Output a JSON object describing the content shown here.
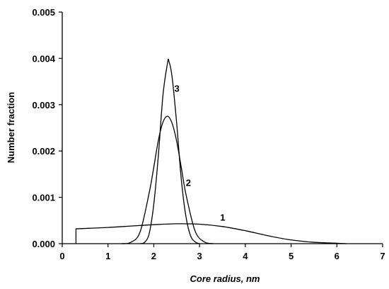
{
  "chart_data": {
    "type": "line",
    "xlabel": "Core radius, nm",
    "ylabel": "Number fraction",
    "xlim": [
      0,
      7
    ],
    "ylim": [
      0,
      0.005
    ],
    "x_ticks": [
      "0",
      "1",
      "2",
      "3",
      "4",
      "5",
      "6",
      "7"
    ],
    "y_ticks": [
      "0.000",
      "0.001",
      "0.002",
      "0.003",
      "0.004",
      "0.005"
    ],
    "grid": false,
    "series": [
      {
        "name": "1",
        "x": [
          0.3,
          0.3,
          1.0,
          1.5,
          2.0,
          2.5,
          3.0,
          3.5,
          4.0,
          4.5,
          5.0,
          5.5,
          6.0,
          6.2
        ],
        "y": [
          0.0,
          0.00032,
          0.00035,
          0.00038,
          0.00041,
          0.00043,
          0.00042,
          0.00037,
          0.00028,
          0.00017,
          8e-05,
          3e-05,
          1e-05,
          0.0
        ]
      },
      {
        "name": "2",
        "x": [
          1.3,
          1.5,
          1.7,
          1.9,
          2.0,
          2.1,
          2.2,
          2.3,
          2.4,
          2.5,
          2.6,
          2.7,
          2.9,
          3.1,
          3.3
        ],
        "y": [
          0.0,
          3e-05,
          0.00025,
          0.0011,
          0.00165,
          0.00223,
          0.00262,
          0.00275,
          0.0026,
          0.00221,
          0.00165,
          0.00108,
          0.00028,
          4e-05,
          0.0
        ]
      },
      {
        "name": "3",
        "x": [
          1.7,
          1.8,
          1.9,
          2.0,
          2.1,
          2.2,
          2.3,
          2.33,
          2.4,
          2.5,
          2.6,
          2.7,
          2.8,
          2.9,
          3.0
        ],
        "y": [
          0.0,
          3e-05,
          0.00022,
          0.00085,
          0.0019,
          0.0032,
          0.0039,
          0.00394,
          0.0036,
          0.0026,
          0.0014,
          0.0006,
          0.00018,
          4e-05,
          0.0
        ]
      }
    ],
    "curve_labels": [
      {
        "text": "1",
        "x": 3.45,
        "y": 0.0005
      },
      {
        "text": "2",
        "x": 2.7,
        "y": 0.00125
      },
      {
        "text": "3",
        "x": 2.45,
        "y": 0.00328
      }
    ]
  }
}
